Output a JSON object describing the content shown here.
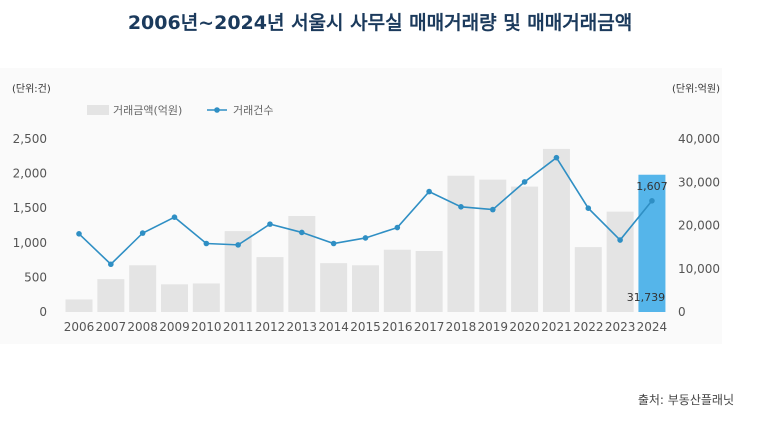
{
  "title": "2006년~2024년 서울시 사무실 매매거래량 및 매매거래금액",
  "unit_left": "(단위:건)",
  "unit_right": "(단위:억원)",
  "source": "출처: 부동산플래닛",
  "chart_data": {
    "type": "bar",
    "categories": [
      "2006",
      "2007",
      "2008",
      "2009",
      "2010",
      "2011",
      "2012",
      "2013",
      "2014",
      "2015",
      "2016",
      "2017",
      "2018",
      "2019",
      "2020",
      "2021",
      "2022",
      "2023",
      "2024"
    ],
    "series": [
      {
        "name": "거래금액(억원)",
        "type": "bar",
        "axis": "right",
        "values": [
          2900,
          7600,
          10800,
          6400,
          6600,
          18700,
          12700,
          22200,
          11300,
          10800,
          14400,
          14100,
          31500,
          30600,
          29000,
          37700,
          15000,
          23200,
          31739
        ],
        "color": "#e4e4e4",
        "highlight_color": "#55b5ea"
      },
      {
        "name": "거래건수",
        "type": "line",
        "axis": "left",
        "values": [
          1130,
          690,
          1140,
          1370,
          990,
          970,
          1270,
          1150,
          990,
          1070,
          1220,
          1740,
          1520,
          1480,
          1880,
          2230,
          1500,
          1040,
          1607
        ],
        "color": "#2f8fc4"
      }
    ],
    "data_labels": [
      {
        "series": "거래건수",
        "category": "2024",
        "text": "1,607"
      },
      {
        "series": "거래금액(억원)",
        "category": "2024",
        "text": "31,739"
      }
    ],
    "left_axis": {
      "ylim": [
        0,
        2500
      ],
      "ticks": [
        "0",
        "500",
        "1,000",
        "1,500",
        "2,000",
        "2,500"
      ]
    },
    "right_axis": {
      "ylim": [
        0,
        40000
      ],
      "ticks": [
        "0",
        "10,000",
        "20,000",
        "30,000",
        "40,000"
      ]
    },
    "legend_placement": "top-left",
    "grid": false
  }
}
